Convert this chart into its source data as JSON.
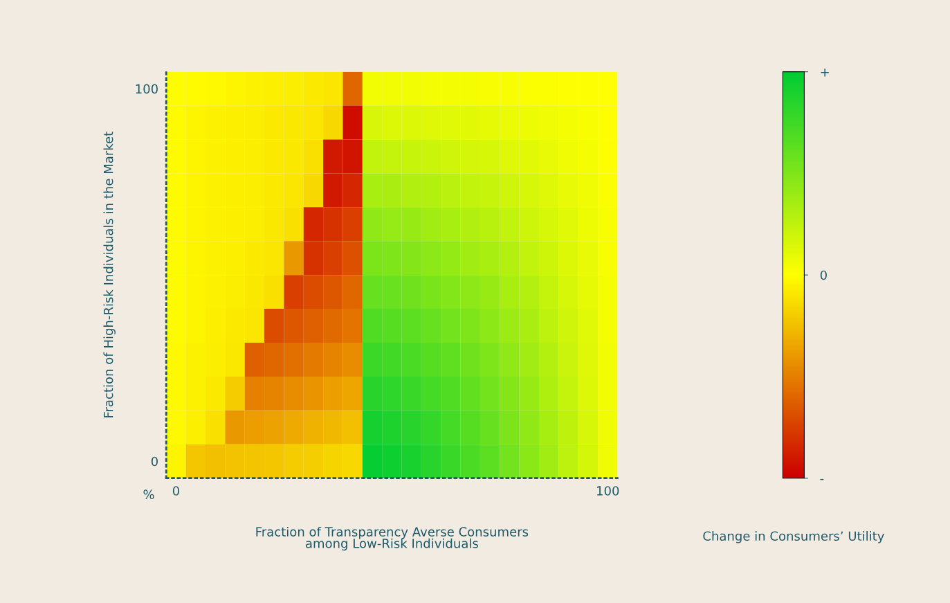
{
  "chart_data": {
    "type": "heatmap",
    "xlabel": "Fraction of Transparency Averse Consumers\namong Low-Risk Individuals",
    "ylabel": "Fraction of High-Risk Individuals in the Market",
    "clabel": "Change in Consumers’ Utility",
    "annotations": [
      "%"
    ],
    "categories": [
      "0",
      null,
      null,
      null,
      null,
      null,
      null,
      null,
      null,
      null,
      null,
      null,
      null,
      null,
      null,
      null,
      null,
      null,
      null,
      null,
      null,
      null,
      "100"
    ],
    "y_categories": [
      "100",
      null,
      null,
      null,
      null,
      null,
      null,
      null,
      null,
      null,
      null,
      "0"
    ],
    "clim": [
      -1,
      1
    ],
    "cticks": [
      {
        "value": -1,
        "label": "-"
      },
      {
        "value": 0,
        "label": "0"
      },
      {
        "value": 1,
        "label": "+"
      }
    ],
    "colors": [
      "#cc0000",
      "#ffff00",
      "#00cc33"
    ],
    "grid": false,
    "cells": [
      [
        -0.01,
        -0.02,
        -0.03,
        -0.04,
        -0.05,
        -0.06,
        -0.07,
        -0.08,
        -0.1,
        -0.6,
        0.05,
        0.05,
        0.05,
        0.04,
        0.04,
        0.04,
        0.03,
        0.03,
        0.02,
        0.02,
        0.01,
        0.01,
        0.0
      ],
      [
        -0.02,
        -0.04,
        -0.05,
        -0.06,
        -0.07,
        -0.08,
        -0.09,
        -0.1,
        -0.15,
        -0.95,
        0.15,
        0.14,
        0.14,
        0.13,
        0.12,
        0.11,
        0.1,
        0.08,
        0.07,
        0.06,
        0.04,
        0.03,
        0.01
      ],
      [
        -0.02,
        -0.04,
        -0.05,
        -0.06,
        -0.07,
        -0.08,
        -0.09,
        -0.12,
        -0.9,
        -0.92,
        0.24,
        0.23,
        0.22,
        0.21,
        0.19,
        0.17,
        0.16,
        0.13,
        0.11,
        0.09,
        0.06,
        0.04,
        0.01
      ],
      [
        -0.02,
        -0.04,
        -0.05,
        -0.06,
        -0.07,
        -0.08,
        -0.1,
        -0.15,
        -0.9,
        -0.85,
        0.34,
        0.33,
        0.31,
        0.29,
        0.27,
        0.24,
        0.22,
        0.19,
        0.16,
        0.13,
        0.09,
        0.06,
        0.02
      ],
      [
        -0.02,
        -0.04,
        -0.05,
        -0.06,
        -0.07,
        -0.09,
        -0.12,
        -0.85,
        -0.8,
        -0.75,
        0.43,
        0.41,
        0.4,
        0.37,
        0.34,
        0.31,
        0.28,
        0.24,
        0.2,
        0.16,
        0.12,
        0.07,
        0.03
      ],
      [
        -0.02,
        -0.04,
        -0.05,
        -0.06,
        -0.08,
        -0.1,
        -0.4,
        -0.8,
        -0.75,
        -0.68,
        0.51,
        0.5,
        0.48,
        0.45,
        0.42,
        0.37,
        0.34,
        0.29,
        0.24,
        0.2,
        0.14,
        0.09,
        0.03
      ],
      [
        -0.02,
        -0.04,
        -0.05,
        -0.07,
        -0.09,
        -0.12,
        -0.75,
        -0.7,
        -0.66,
        -0.6,
        0.6,
        0.58,
        0.56,
        0.52,
        0.49,
        0.44,
        0.4,
        0.34,
        0.29,
        0.23,
        0.16,
        0.1,
        0.04
      ],
      [
        -0.02,
        -0.04,
        -0.06,
        -0.08,
        -0.1,
        -0.7,
        -0.66,
        -0.62,
        -0.58,
        -0.54,
        0.68,
        0.66,
        0.64,
        0.6,
        0.55,
        0.5,
        0.45,
        0.39,
        0.33,
        0.26,
        0.19,
        0.12,
        0.04
      ],
      [
        -0.03,
        -0.05,
        -0.07,
        -0.09,
        -0.62,
        -0.6,
        -0.56,
        -0.52,
        -0.48,
        -0.45,
        0.76,
        0.74,
        0.71,
        0.66,
        0.62,
        0.56,
        0.5,
        0.43,
        0.36,
        0.29,
        0.21,
        0.13,
        0.05
      ],
      [
        -0.03,
        -0.05,
        -0.08,
        -0.2,
        -0.5,
        -0.48,
        -0.45,
        -0.42,
        -0.38,
        -0.35,
        0.84,
        0.82,
        0.78,
        0.73,
        0.68,
        0.61,
        0.55,
        0.48,
        0.4,
        0.32,
        0.23,
        0.14,
        0.05
      ],
      [
        -0.03,
        -0.06,
        -0.12,
        -0.4,
        -0.38,
        -0.36,
        -0.33,
        -0.3,
        -0.28,
        -0.25,
        0.91,
        0.88,
        0.84,
        0.79,
        0.73,
        0.66,
        0.6,
        0.51,
        0.43,
        0.35,
        0.25,
        0.16,
        0.06
      ],
      [
        -0.04,
        -0.22,
        -0.25,
        -0.24,
        -0.23,
        -0.22,
        -0.2,
        -0.19,
        -0.17,
        -0.15,
        0.97,
        0.94,
        0.9,
        0.84,
        0.78,
        0.7,
        0.64,
        0.55,
        0.46,
        0.37,
        0.26,
        0.17,
        0.06
      ]
    ]
  }
}
